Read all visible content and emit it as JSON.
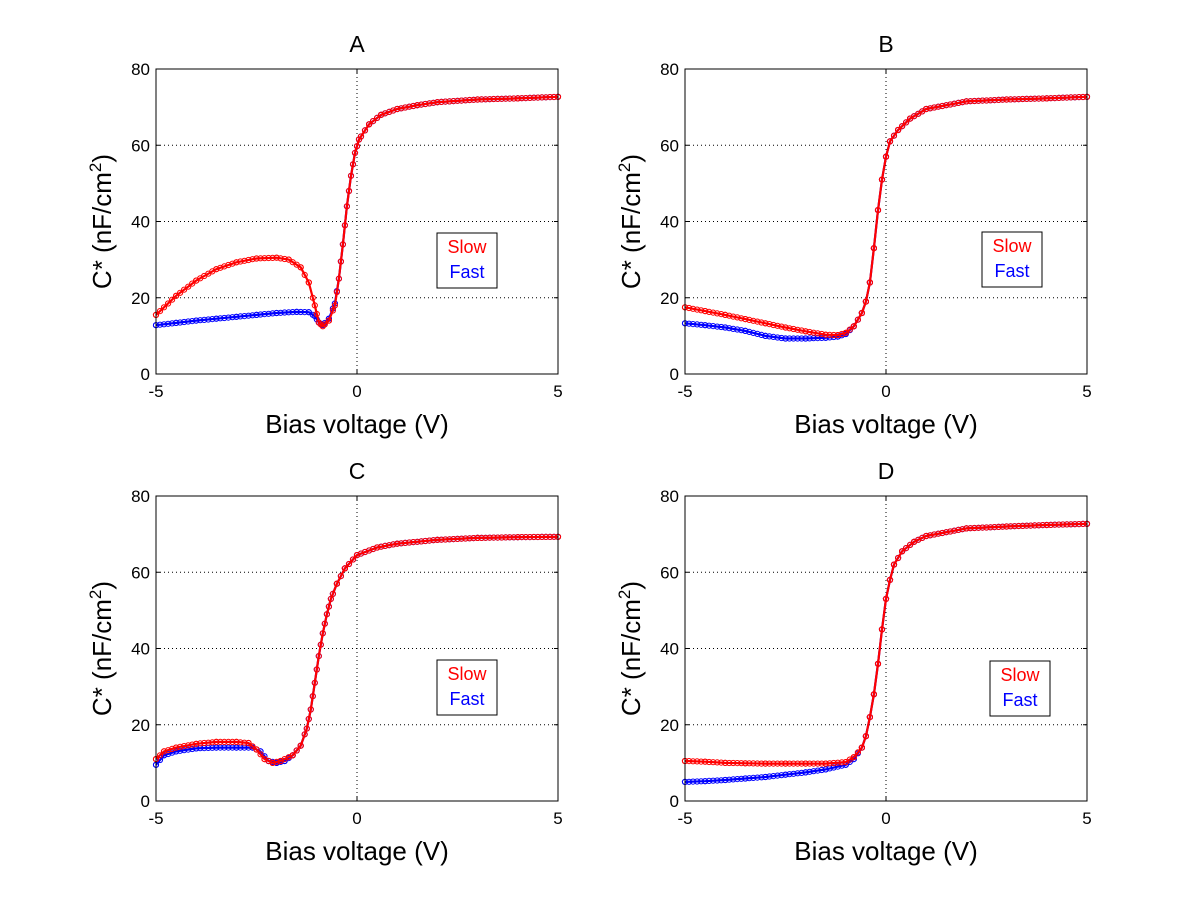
{
  "figure": {
    "background": "#ffffff"
  },
  "chart_data": [
    {
      "type": "line",
      "title": "A",
      "xlabel": "Bias voltage (V)",
      "ylabel": "C* (nF/cm",
      "ylabel_superscript": "2",
      "ylabel_suffix": ")",
      "xlim": [
        -5,
        5
      ],
      "ylim": [
        0,
        80
      ],
      "xticks": [
        -5,
        0,
        5
      ],
      "yticks": [
        0,
        20,
        40,
        60,
        80
      ],
      "xtick_labels": [
        "-5",
        "0",
        "5"
      ],
      "ytick_labels": [
        "0",
        "20",
        "40",
        "60",
        "80"
      ],
      "grid": true,
      "legend": {
        "placement": "center-right",
        "entries": [
          "Slow",
          "Fast"
        ]
      },
      "series": [
        {
          "name": "Fast",
          "color": "#0000ff",
          "marker": "circle",
          "x": [
            -5,
            -4.5,
            -4,
            -3.5,
            -3,
            -2.5,
            -2,
            -1.5,
            -1.2,
            -1.05,
            -0.95,
            -0.85,
            -0.7,
            -0.55,
            -0.45,
            -0.35,
            -0.25,
            -0.15,
            -0.05,
            0.05,
            0.3,
            0.6,
            1,
            1.5,
            2,
            3,
            4,
            5
          ],
          "y": [
            12.8,
            13.4,
            14,
            14.5,
            15,
            15.5,
            16,
            16.3,
            16.2,
            15.2,
            13.5,
            12.8,
            14.5,
            18.5,
            25,
            34,
            44,
            52,
            58,
            61.5,
            65.5,
            68,
            69.5,
            70.5,
            71.3,
            72,
            72.3,
            72.7
          ]
        },
        {
          "name": "Slow",
          "color": "#ff0000",
          "marker": "circle",
          "x": [
            -5,
            -4.5,
            -4,
            -3.5,
            -3,
            -2.5,
            -2,
            -1.7,
            -1.4,
            -1.2,
            -1.05,
            -0.95,
            -0.85,
            -0.7,
            -0.55,
            -0.45,
            -0.35,
            -0.25,
            -0.15,
            -0.05,
            0.05,
            0.3,
            0.6,
            1,
            1.5,
            2,
            3,
            4,
            5
          ],
          "y": [
            15.5,
            20.5,
            24.5,
            27.5,
            29.3,
            30.3,
            30.5,
            30,
            28,
            24,
            18,
            13.5,
            12.5,
            14,
            18,
            25,
            34,
            44,
            52,
            58,
            61.5,
            65.5,
            68,
            69.5,
            70.5,
            71.3,
            72,
            72.3,
            72.7
          ]
        }
      ]
    },
    {
      "type": "line",
      "title": "B",
      "xlabel": "Bias voltage (V)",
      "ylabel": "C* (nF/cm",
      "ylabel_superscript": "2",
      "ylabel_suffix": ")",
      "xlim": [
        -5,
        5
      ],
      "ylim": [
        0,
        80
      ],
      "xticks": [
        -5,
        0,
        5
      ],
      "yticks": [
        0,
        20,
        40,
        60,
        80
      ],
      "xtick_labels": [
        "-5",
        "0",
        "5"
      ],
      "ytick_labels": [
        "0",
        "20",
        "40",
        "60",
        "80"
      ],
      "grid": true,
      "legend": {
        "placement": "center-right",
        "entries": [
          "Slow",
          "Fast"
        ]
      },
      "series": [
        {
          "name": "Fast",
          "color": "#0000ff",
          "marker": "circle",
          "x": [
            -5,
            -4.5,
            -4,
            -3.5,
            -3,
            -2.5,
            -2,
            -1.5,
            -1.2,
            -1,
            -0.8,
            -0.6,
            -0.5,
            -0.4,
            -0.3,
            -0.2,
            -0.1,
            0,
            0.1,
            0.3,
            0.6,
            1,
            2,
            3,
            4,
            5
          ],
          "y": [
            13.3,
            12.8,
            12.2,
            11.3,
            10,
            9.3,
            9.3,
            9.5,
            9.8,
            10.5,
            12.5,
            16,
            19,
            24,
            33,
            43,
            51,
            57,
            61,
            64,
            67,
            69.5,
            71.5,
            72,
            72.3,
            72.7
          ]
        },
        {
          "name": "Slow",
          "color": "#ff0000",
          "marker": "circle",
          "x": [
            -5,
            -4.5,
            -4,
            -3.5,
            -3,
            -2.5,
            -2,
            -1.5,
            -1.2,
            -1,
            -0.8,
            -0.6,
            -0.5,
            -0.4,
            -0.3,
            -0.2,
            -0.1,
            0,
            0.1,
            0.3,
            0.6,
            1,
            2,
            3,
            4,
            5
          ],
          "y": [
            17.5,
            16.5,
            15.5,
            14.4,
            13.3,
            12.2,
            11.2,
            10.3,
            10.2,
            10.8,
            12.5,
            16,
            19,
            24,
            33,
            43,
            51,
            57,
            61,
            64,
            67,
            69.5,
            71.5,
            72,
            72.3,
            72.7
          ]
        }
      ]
    },
    {
      "type": "line",
      "title": "C",
      "xlabel": "Bias voltage (V)",
      "ylabel": "C* (nF/cm",
      "ylabel_superscript": "2",
      "ylabel_suffix": ")",
      "xlim": [
        -5,
        5
      ],
      "ylim": [
        0,
        80
      ],
      "xticks": [
        -5,
        0,
        5
      ],
      "yticks": [
        0,
        20,
        40,
        60,
        80
      ],
      "xtick_labels": [
        "-5",
        "0",
        "5"
      ],
      "ytick_labels": [
        "0",
        "20",
        "40",
        "60",
        "80"
      ],
      "grid": true,
      "legend": {
        "placement": "center-right",
        "entries": [
          "Slow",
          "Fast"
        ]
      },
      "series": [
        {
          "name": "Fast",
          "color": "#0000ff",
          "marker": "circle",
          "x": [
            -5,
            -4.8,
            -4.5,
            -4,
            -3.5,
            -3,
            -2.6,
            -2.4,
            -2.2,
            -2,
            -1.8,
            -1.6,
            -1.4,
            -1.25,
            -1.15,
            -1.05,
            -0.95,
            -0.85,
            -0.75,
            -0.65,
            -0.5,
            -0.3,
            0,
            0.5,
            1,
            2,
            3,
            4,
            5
          ],
          "y": [
            9.5,
            12,
            13,
            13.8,
            14,
            14,
            14,
            13,
            10.5,
            10,
            10.5,
            12,
            14.5,
            19,
            24,
            31,
            38,
            44,
            49,
            53,
            57,
            61,
            64.5,
            66.5,
            67.5,
            68.5,
            69,
            69.2,
            69.3
          ]
        },
        {
          "name": "Slow",
          "color": "#ff0000",
          "marker": "circle",
          "x": [
            -5,
            -4.8,
            -4.5,
            -4,
            -3.5,
            -3,
            -2.7,
            -2.5,
            -2.3,
            -2.1,
            -1.9,
            -1.6,
            -1.4,
            -1.25,
            -1.15,
            -1.05,
            -0.95,
            -0.85,
            -0.75,
            -0.65,
            -0.5,
            -0.3,
            0,
            0.5,
            1,
            2,
            3,
            4,
            5
          ],
          "y": [
            11,
            13,
            14,
            15,
            15.5,
            15.5,
            15.2,
            13.5,
            11,
            10,
            10.5,
            12,
            14.5,
            19,
            24,
            31,
            38,
            44,
            49,
            53,
            57,
            61,
            64.5,
            66.5,
            67.5,
            68.5,
            69,
            69.2,
            69.3
          ]
        }
      ]
    },
    {
      "type": "line",
      "title": "D",
      "xlabel": "Bias voltage (V)",
      "ylabel": "C* (nF/cm",
      "ylabel_superscript": "2",
      "ylabel_suffix": ")",
      "xlim": [
        -5,
        5
      ],
      "ylim": [
        0,
        80
      ],
      "xticks": [
        -5,
        0,
        5
      ],
      "yticks": [
        0,
        20,
        40,
        60,
        80
      ],
      "xtick_labels": [
        "-5",
        "0",
        "5"
      ],
      "ytick_labels": [
        "0",
        "20",
        "40",
        "60",
        "80"
      ],
      "grid": true,
      "legend": {
        "placement": "center-right",
        "entries": [
          "Slow",
          "Fast"
        ]
      },
      "series": [
        {
          "name": "Fast",
          "color": "#0000ff",
          "marker": "circle",
          "x": [
            -5,
            -4.5,
            -4,
            -3.5,
            -3,
            -2.5,
            -2,
            -1.5,
            -1,
            -0.8,
            -0.6,
            -0.5,
            -0.4,
            -0.3,
            -0.2,
            -0.1,
            0,
            0.1,
            0.2,
            0.4,
            0.7,
            1,
            2,
            3,
            4,
            5
          ],
          "y": [
            5,
            5.2,
            5.5,
            5.9,
            6.3,
            6.9,
            7.5,
            8.3,
            9.5,
            11,
            14,
            17,
            22,
            28,
            36,
            45,
            53,
            58,
            62,
            65.5,
            68,
            69.5,
            71.5,
            72,
            72.4,
            72.7
          ]
        },
        {
          "name": "Slow",
          "color": "#ff0000",
          "marker": "circle",
          "x": [
            -5,
            -4.5,
            -4,
            -3.5,
            -3,
            -2.5,
            -2,
            -1.5,
            -1,
            -0.8,
            -0.6,
            -0.5,
            -0.4,
            -0.3,
            -0.2,
            -0.1,
            0,
            0.1,
            0.2,
            0.4,
            0.7,
            1,
            2,
            3,
            4,
            5
          ],
          "y": [
            10.5,
            10.3,
            10,
            9.9,
            9.8,
            9.8,
            9.8,
            9.8,
            10.2,
            11.5,
            14,
            17,
            22,
            28,
            36,
            45,
            53,
            58,
            62,
            65.5,
            68,
            69.5,
            71.5,
            72,
            72.4,
            72.7
          ]
        }
      ]
    }
  ]
}
